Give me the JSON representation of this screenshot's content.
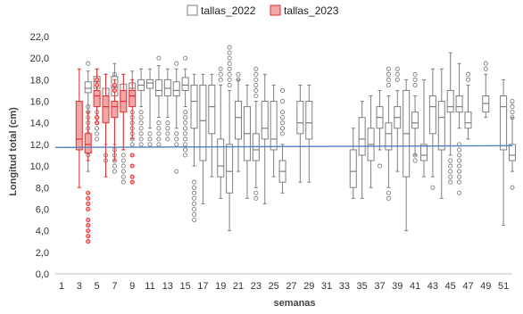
{
  "chart_data": {
    "type": "box",
    "xlabel": "semanas",
    "ylabel": "Longitud total (cm)",
    "ylim": [
      0,
      22
    ],
    "yticks": [
      "0,0",
      "2,0",
      "4,0",
      "6,0",
      "8,0",
      "10,0",
      "12,0",
      "14,0",
      "16,0",
      "18,0",
      "20,0",
      "22,0"
    ],
    "xlim": [
      1,
      52
    ],
    "xticks": [
      1,
      3,
      5,
      7,
      9,
      11,
      13,
      15,
      17,
      19,
      21,
      23,
      25,
      27,
      29,
      31,
      33,
      35,
      37,
      39,
      41,
      43,
      45,
      47,
      49,
      51
    ],
    "legend_position": "top-center",
    "grid": false,
    "reference_line": {
      "y": 11.8,
      "color": "#4f81bd"
    },
    "series": [
      {
        "name": "tallas_2022",
        "color": "#7f7f7f",
        "fill": "#ffffff",
        "boxes": [
          {
            "week": 4,
            "min": 9.5,
            "q1": 16.8,
            "median": 17.2,
            "q3": 17.8,
            "max": 18.8,
            "outliers": [
              19.5,
              15.5,
              15,
              14.5,
              14,
              13.5,
              13,
              12.5,
              12,
              11.5,
              11
            ]
          },
          {
            "week": 5,
            "min": 15.5,
            "q1": 17.2,
            "median": 17.8,
            "q3": 18.3,
            "max": 19,
            "outliers": [
              15,
              14.5,
              14,
              13.5,
              13,
              12.5
            ]
          },
          {
            "week": 6,
            "min": 12,
            "q1": 15.2,
            "median": 16.3,
            "q3": 17.2,
            "max": 18.5,
            "outliers": [
              11,
              10.5
            ]
          },
          {
            "week": 7,
            "min": 12,
            "q1": 16.5,
            "median": 17.3,
            "q3": 18.3,
            "max": 19.5,
            "outliers": [
              18.5,
              11.5,
              11,
              10.5,
              10,
              9.5
            ]
          },
          {
            "week": 8,
            "min": 11.5,
            "q1": 15.8,
            "median": 16.7,
            "q3": 17.6,
            "max": 18.5,
            "outliers": [
              11,
              10.5,
              10,
              9.5,
              9,
              8.5
            ]
          },
          {
            "week": 9,
            "min": 15.5,
            "q1": 16.8,
            "median": 17.2,
            "q3": 17.7,
            "max": 18.8,
            "outliers": [
              15,
              14.5,
              14,
              13.5,
              13,
              12.5,
              12
            ]
          },
          {
            "week": 10,
            "min": 15.5,
            "q1": 17,
            "median": 17.5,
            "q3": 18,
            "max": 19,
            "outliers": [
              15,
              14.5,
              14,
              13.5,
              13,
              12.5,
              12
            ]
          },
          {
            "week": 11,
            "min": 13.5,
            "q1": 17.2,
            "median": 17.7,
            "q3": 18,
            "max": 19,
            "outliers": [
              13,
              12.5,
              12
            ]
          },
          {
            "week": 12,
            "min": 14.5,
            "q1": 16.5,
            "median": 17,
            "q3": 18,
            "max": 19.3,
            "outliers": [
              20,
              14,
              13.5,
              13,
              12.5,
              12
            ]
          },
          {
            "week": 13,
            "min": 14.5,
            "q1": 16.5,
            "median": 17.2,
            "q3": 18,
            "max": 19,
            "outliers": [
              14,
              13.5,
              13,
              12.5
            ]
          },
          {
            "week": 14,
            "min": 13.5,
            "q1": 16.5,
            "median": 17,
            "q3": 17.8,
            "max": 19,
            "outliers": [
              19.5,
              13,
              12.5,
              12,
              9.5
            ]
          },
          {
            "week": 15,
            "min": 15.5,
            "q1": 17,
            "median": 17.5,
            "q3": 18.2,
            "max": 19,
            "outliers": [
              20,
              15,
              14.5,
              14,
              13.5,
              13,
              12.5,
              12,
              11.5,
              11
            ]
          },
          {
            "week": 16,
            "min": 10,
            "q1": 13.5,
            "median": 16,
            "q3": 17.5,
            "max": 18.5,
            "outliers": [
              8.5,
              8,
              7.5,
              7,
              6.5,
              6,
              5.5,
              5
            ]
          },
          {
            "week": 17,
            "min": 6.5,
            "q1": 10.5,
            "median": 14.2,
            "q3": 17.5,
            "max": 18.5,
            "outliers": []
          },
          {
            "week": 18,
            "min": 9,
            "q1": 13,
            "median": 15.5,
            "q3": 17.5,
            "max": 18.5,
            "outliers": []
          },
          {
            "week": 19,
            "min": 7,
            "q1": 9,
            "median": 10,
            "q3": 12.5,
            "max": 17.5,
            "outliers": [
              19,
              18.5,
              18
            ]
          },
          {
            "week": 20,
            "min": 4,
            "q1": 7.5,
            "median": 9.5,
            "q3": 12,
            "max": 17,
            "outliers": [
              21,
              20.5,
              20,
              19.5,
              19,
              18.5,
              18,
              17.5
            ]
          },
          {
            "week": 21,
            "min": 9.5,
            "q1": 12.5,
            "median": 14.5,
            "q3": 16,
            "max": 18,
            "outliers": [
              18.5,
              18
            ]
          },
          {
            "week": 22,
            "min": 7,
            "q1": 10.5,
            "median": 13,
            "q3": 15.5,
            "max": 17.5,
            "outliers": []
          },
          {
            "week": 23,
            "min": 8,
            "q1": 10.5,
            "median": 11.5,
            "q3": 13,
            "max": 16,
            "outliers": [
              19,
              18.5,
              18,
              17.5,
              17,
              16.5,
              7.5,
              7
            ]
          },
          {
            "week": 24,
            "min": 6.5,
            "q1": 12.5,
            "median": 13.5,
            "q3": 16,
            "max": 18.5,
            "outliers": []
          },
          {
            "week": 25,
            "min": 9,
            "q1": 11.5,
            "median": 12.5,
            "q3": 16,
            "max": 17.5,
            "outliers": []
          },
          {
            "week": 26,
            "min": 7.5,
            "q1": 8.5,
            "median": 9.5,
            "q3": 10.5,
            "max": 12,
            "outliers": [
              17,
              16,
              15,
              14.5,
              14,
              13.5,
              13
            ]
          },
          {
            "week": 28,
            "min": 8.5,
            "q1": 13,
            "median": 14,
            "q3": 16,
            "max": 17.5,
            "outliers": []
          },
          {
            "week": 29,
            "min": 8.5,
            "q1": 12.5,
            "median": 14,
            "q3": 16,
            "max": 17.5,
            "outliers": []
          },
          {
            "week": 34,
            "min": 7,
            "q1": 8,
            "median": 9.5,
            "q3": 11.5,
            "max": 13.5,
            "outliers": []
          },
          {
            "week": 35,
            "min": 7,
            "q1": 11,
            "median": 12.5,
            "q3": 14.5,
            "max": 16,
            "outliers": []
          },
          {
            "week": 36,
            "min": 8,
            "q1": 10.5,
            "median": 12,
            "q3": 13.5,
            "max": 16.5,
            "outliers": []
          },
          {
            "week": 37,
            "min": 11.5,
            "q1": 13.5,
            "median": 14.5,
            "q3": 15.5,
            "max": 17,
            "outliers": [
              10
            ]
          },
          {
            "week": 38,
            "min": 8,
            "q1": 11.5,
            "median": 13,
            "q3": 14,
            "max": 16.5,
            "outliers": [
              19,
              18.5,
              18,
              17.5,
              7.5,
              7
            ]
          },
          {
            "week": 39,
            "min": 9.5,
            "q1": 13.5,
            "median": 14.5,
            "q3": 15.5,
            "max": 17,
            "outliers": [
              19,
              18.5,
              18
            ]
          },
          {
            "week": 40,
            "min": 4,
            "q1": 9,
            "median": 13,
            "q3": 17,
            "max": 18,
            "outliers": []
          },
          {
            "week": 41,
            "min": 11,
            "q1": 13.5,
            "median": 14,
            "q3": 15,
            "max": 16.5,
            "outliers": [
              18.5,
              18,
              17.5,
              11,
              10.5
            ]
          },
          {
            "week": 42,
            "min": 9,
            "q1": 10.5,
            "median": 11,
            "q3": 12,
            "max": 18,
            "outliers": []
          },
          {
            "week": 43,
            "min": 9,
            "q1": 13,
            "median": 15.5,
            "q3": 16.5,
            "max": 19,
            "outliers": [
              8
            ]
          },
          {
            "week": 44,
            "min": 7,
            "q1": 11.5,
            "median": 14.5,
            "q3": 16,
            "max": 19,
            "outliers": []
          },
          {
            "week": 45,
            "min": 11,
            "q1": 15,
            "median": 15.5,
            "q3": 17,
            "max": 20.5,
            "outliers": [
              10.5,
              10,
              9.5,
              9,
              8.5
            ]
          },
          {
            "week": 46,
            "min": 13.5,
            "q1": 15,
            "median": 15.5,
            "q3": 16.5,
            "max": 19.5,
            "outliers": [
              12,
              11.5,
              11,
              10.5,
              10,
              9.5,
              9,
              8.5,
              7.5
            ]
          },
          {
            "week": 47,
            "min": 12.5,
            "q1": 13.5,
            "median": 14,
            "q3": 15,
            "max": 17.5,
            "outliers": [
              18.5,
              18
            ]
          },
          {
            "week": 49,
            "min": 14.5,
            "q1": 15,
            "median": 15.8,
            "q3": 16.5,
            "max": 18.5,
            "outliers": [
              19.5,
              19
            ]
          },
          {
            "week": 51,
            "min": 4.5,
            "q1": 11.5,
            "median": 15.5,
            "q3": 16.5,
            "max": 18,
            "outliers": []
          },
          {
            "week": 52,
            "min": 9.5,
            "q1": 10.5,
            "median": 11,
            "q3": 12,
            "max": 14.5,
            "outliers": [
              16,
              15.5,
              15,
              14.5,
              8
            ]
          }
        ]
      },
      {
        "name": "tallas_2023",
        "color": "#e03030",
        "fill": "#f4a6a6",
        "boxes": [
          {
            "week": 3,
            "min": 8,
            "q1": 11.5,
            "median": 12.5,
            "q3": 16,
            "max": 19,
            "outliers": []
          },
          {
            "week": 4,
            "min": 10.5,
            "q1": 11.2,
            "median": 12,
            "q3": 13,
            "max": 15,
            "outliers": [
              7.5,
              7,
              6.5,
              6,
              5,
              4.5,
              4,
              3.5,
              3
            ]
          },
          {
            "week": 5,
            "min": 14,
            "q1": 15.5,
            "median": 16.5,
            "q3": 17,
            "max": 19,
            "outliers": [
              18,
              17.5,
              14.5,
              14
            ]
          },
          {
            "week": 6,
            "min": 9,
            "q1": 14,
            "median": 15.5,
            "q3": 16.5,
            "max": 18.5,
            "outliers": []
          },
          {
            "week": 7,
            "min": 10.5,
            "q1": 14.5,
            "median": 15.5,
            "q3": 16,
            "max": 18,
            "outliers": [
              17.5,
              17
            ]
          },
          {
            "week": 8,
            "min": 11.5,
            "q1": 15,
            "median": 16,
            "q3": 17,
            "max": 18.5,
            "outliers": []
          },
          {
            "week": 9,
            "min": 12.5,
            "q1": 15.5,
            "median": 16.5,
            "q3": 17,
            "max": 18,
            "outliers": [
              11,
              10,
              9,
              8.5
            ]
          }
        ]
      }
    ]
  }
}
